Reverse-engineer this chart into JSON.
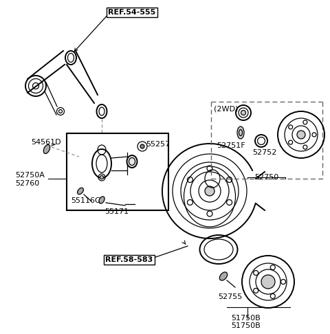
{
  "bg_color": "#ffffff",
  "line_color": "#000000",
  "gray_color": "#888888",
  "dashed_color": "#666666",
  "labels": {
    "ref_54_555": "REF.54-555",
    "ref_58_583": "REF.58-583",
    "part_54561D": "54561D",
    "part_52750A": "52750A",
    "part_52760": "52760",
    "part_55257": "55257",
    "part_55116C": "55116C",
    "part_55171": "55171",
    "part_2WD": "(2WD)",
    "part_52751F": "52751F",
    "part_52752": "52752",
    "part_52750": "52750",
    "part_52755": "52755",
    "part_51750B_1": "51750B",
    "part_51750B_2": "51750B"
  },
  "figsize": [
    4.8,
    4.86
  ],
  "dpi": 100
}
